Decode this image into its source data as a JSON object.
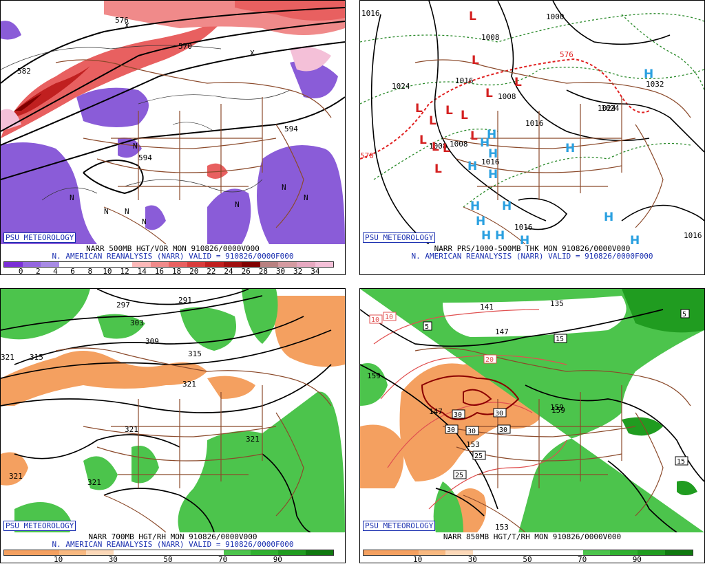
{
  "logo": "PSU METEOROLOGY",
  "panels": [
    {
      "line1": "NARR 500MB HGT/VOR MON 910826/0000V000",
      "line2": "N. AMERICAN REANALYSIS (NARR) VALID = 910826/0000F000",
      "colorbar": {
        "colors": [
          "#7b2fd6",
          "#9466e0",
          "#a78ae4",
          "#ffffff",
          "#ffffff",
          "#ffffff",
          "#ffffff",
          "#fcb8b8",
          "#f08a8a",
          "#e86060",
          "#d83c3c",
          "#c02020",
          "#a01010",
          "#800000",
          "#b88080",
          "#d49aa0",
          "#e6a8c0",
          "#f4c0d8"
        ],
        "labels": [
          "0",
          "2",
          "4",
          "6",
          "8",
          "10",
          "12",
          "14",
          "16",
          "18",
          "20",
          "22",
          "24",
          "26",
          "28",
          "30",
          "32",
          "34"
        ]
      },
      "contour_labels": [
        "576",
        "570",
        "582",
        "594",
        "594"
      ],
      "markers": [
        "N",
        "N",
        "N",
        "N",
        "N",
        "N",
        "N",
        "N",
        "X",
        "X"
      ]
    },
    {
      "line1": "NARR PRS/1000-500MB THK MON 910826/0000V000",
      "line2": "N. AMERICAN REANALYSIS (NARR) VALID = 910826/0000F000",
      "contour_labels": [
        "1016",
        "1008",
        "1000",
        "1024",
        "1016",
        "1008",
        "1016",
        "1024",
        "1016",
        "1016",
        "1032",
        "1024",
        "570",
        "576",
        "1016",
        "1008",
        "1008"
      ],
      "high_label": "H",
      "low_label": "L"
    },
    {
      "line1": "NARR 700MB HGT/RH MON 910826/0000V000",
      "line2": "N. AMERICAN REANALYSIS (NARR) VALID = 910826/0000F000",
      "colorbar": {
        "colors": [
          "#f4a060",
          "#f4a060",
          "#f8b880",
          "#fcd8b8",
          "#ffffff",
          "#ffffff",
          "#ffffff",
          "#ffffff",
          "#4cc44c",
          "#30b030",
          "#209c20",
          "#107810"
        ],
        "labels": [
          "10",
          "30",
          "50",
          "70",
          "90"
        ]
      },
      "contour_labels": [
        "297",
        "291",
        "303",
        "309",
        "315",
        "315",
        "321",
        "321",
        "321",
        "321",
        "321",
        "321"
      ]
    },
    {
      "line1": "NARR 850MB HGT/T/RH MON 910826/0000V000",
      "colorbar": {
        "colors": [
          "#f4a060",
          "#f4a060",
          "#f8b880",
          "#fcd8b8",
          "#ffffff",
          "#ffffff",
          "#ffffff",
          "#ffffff",
          "#4cc44c",
          "#30b030",
          "#209c20",
          "#107810"
        ],
        "labels": [
          "10",
          "30",
          "50",
          "70",
          "90"
        ]
      },
      "contour_labels": [
        "147",
        "141",
        "135",
        "147",
        "159",
        "153",
        "153",
        "159",
        "159"
      ],
      "temp_labels": [
        "10",
        "10",
        "5",
        "15",
        "20",
        "30",
        "30",
        "30",
        "30",
        "30",
        "25",
        "25",
        "15",
        "5"
      ]
    }
  ]
}
